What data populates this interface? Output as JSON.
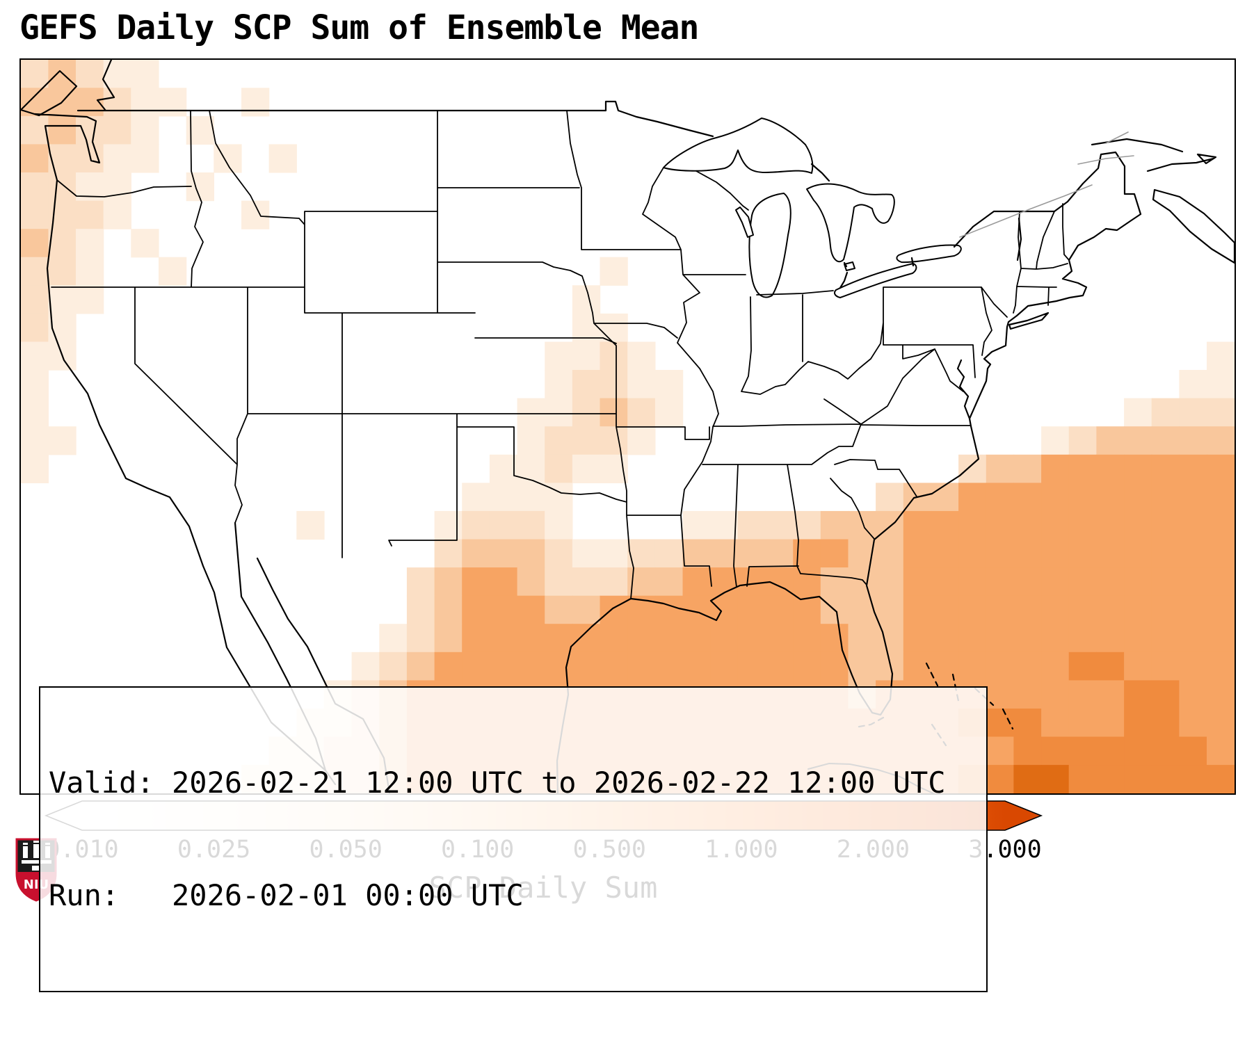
{
  "title": "GEFS Daily SCP Sum of Ensemble Mean",
  "info_box": {
    "valid_line": "Valid: 2026-02-21 12:00 UTC to 2026-02-22 12:00 UTC",
    "run_line": "Run:   2026-02-01 00:00 UTC"
  },
  "colorbar": {
    "label": "SCP Daily Sum",
    "ticks": [
      "0.010",
      "0.025",
      "0.050",
      "0.100",
      "0.500",
      "1.000",
      "2.000",
      "3.000"
    ],
    "colors": [
      "#ffffff",
      "#fff5eb",
      "#fee6ce",
      "#fdd0a2",
      "#fdae6b",
      "#fd8d3c",
      "#f16913",
      "#d94801"
    ],
    "orientation": "horizontal",
    "extend": "both"
  },
  "logo": {
    "text": "NIU",
    "red": "#c8102e"
  },
  "chart_data": {
    "type": "heatmap",
    "title": "GEFS Daily SCP Sum of Ensemble Mean",
    "colorbar_label": "SCP Daily Sum",
    "levels": [
      0.01,
      0.025,
      0.05,
      0.1,
      0.5,
      1.0,
      2.0,
      3.0
    ],
    "valid": "2026-02-21 12:00 UTC to 2026-02-22 12:00 UTC",
    "run": "2026-02-01 00:00 UTC",
    "legend_position": "bottom",
    "cell_colors": [
      "",
      "#fdeedf",
      "#fbdfc5",
      "#f9c79c",
      "#f7a463",
      "#f08b3e",
      "#e06c14",
      "#cc4f02"
    ],
    "grid": {
      "cols": 44,
      "rows": 26,
      "cell_levels": [
        "23211000000000000000000000000000000000000000",
        "33321100100000000000000000000000000000000000",
        "23221010000000000000000000000000000000000000",
        "32211001010000000000000000000000000000000000",
        "22110010000000000000000000000000000000000000",
        "22210000100000000000000000000000000000000000",
        "32101000000000000000000000000000000000000000",
        "22100100000000000000010000000000000000000000",
        "21100000000000000000100000000000000000000000",
        "21000000000000000000110000000000000000000000",
        "11000000000000000001121000000000000000000001",
        "10000000000000000001221100000000000000000011",
        "10000000000000000011232100000000000000001222",
        "11000000000000000012221000000000000001233333",
        "10000000000000000112110000000000002334444444",
        "00000000000000001111000000000002334444444444",
        "00000000001000012221000011222333444444444444",
        "00000000000000023332112233334433444444444444",
        "00000000000000234432223344444333444444444444",
        "00000000000000234443344444444333444444444444",
        "00000000000001234444444444444433444444444444",
        "00000000000012344444444444444433444444554444",
        "00000000000123444444444444444434444444445544",
        "00000000001123444444444444444444445554445544",
        "00000000011223444444444444444444444455555554",
        "00000000111223444444444444444444445566555555"
      ]
    }
  }
}
